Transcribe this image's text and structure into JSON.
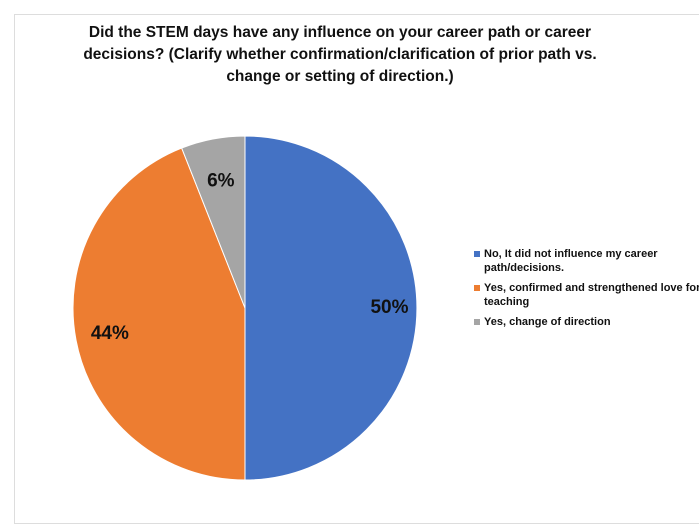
{
  "chart_data": {
    "type": "pie",
    "title": "Did the STEM days have any influence on your career path or career decisions?  (Clarify whether confirmation/clarification of prior path vs. change or setting of direction.)",
    "categories": [
      "No, It did not influence my career path/decisions.",
      "Yes,  confirmed and strengthened love for teaching",
      "Yes, change of direction"
    ],
    "values": [
      50,
      44,
      6
    ],
    "value_labels": [
      "50%",
      "44%",
      "6%"
    ],
    "colors": [
      "#4472c4",
      "#ed7d31",
      "#a5a5a5"
    ],
    "legend": "right"
  }
}
